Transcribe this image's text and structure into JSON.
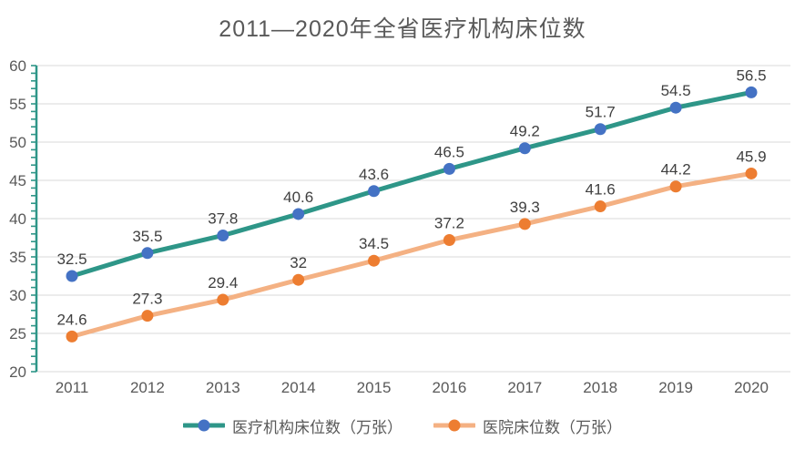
{
  "title": "2011—2020年全省医疗机构床位数",
  "chart_data": {
    "type": "line",
    "title": "2011—2020年全省医疗机构床位数",
    "categories": [
      "2011",
      "2012",
      "2013",
      "2014",
      "2015",
      "2016",
      "2017",
      "2018",
      "2019",
      "2020"
    ],
    "series": [
      {
        "name": "医疗机构床位数（万张）",
        "values": [
          32.5,
          35.5,
          37.8,
          40.6,
          43.6,
          46.5,
          49.2,
          51.7,
          54.5,
          56.5
        ],
        "line_color": "#2E9688",
        "marker_color": "#4472C4"
      },
      {
        "name": "医院床位数（万张）",
        "values": [
          24.6,
          27.3,
          29.4,
          32,
          34.5,
          37.2,
          39.3,
          41.6,
          44.2,
          45.9
        ],
        "line_color": "#F4B183",
        "marker_color": "#ED7D31"
      }
    ],
    "xlabel": "",
    "ylabel": "",
    "ylim": [
      20,
      60
    ],
    "y_tick_step": 5,
    "y_minor_tick_step": 1,
    "y_tick_labels": [
      "20",
      "25",
      "30",
      "35",
      "40",
      "45",
      "50",
      "55",
      "60"
    ],
    "grid": true,
    "legend_position": "bottom",
    "colors": {
      "axis": "#2E9688",
      "gridline": "#D9D9D9",
      "axis_label": "#595959",
      "data_label": "#404040",
      "title": "#595959"
    }
  }
}
